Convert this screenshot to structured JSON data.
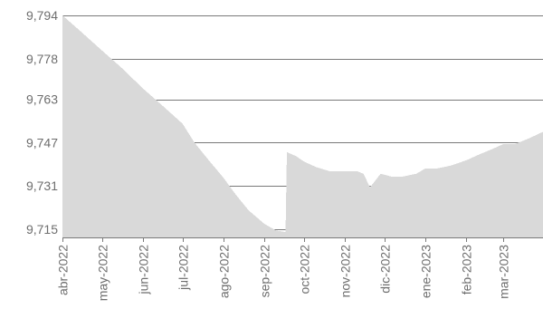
{
  "chart_data": {
    "type": "area",
    "title": "",
    "xlabel": "",
    "ylabel": "",
    "fill_color": "#d9d9d9",
    "grid": true,
    "ylim": [
      9.712,
      9.797
    ],
    "y_ticks": [
      9.715,
      9.731,
      9.747,
      9.763,
      9.778,
      9.794
    ],
    "y_tick_labels": [
      "9,715",
      "9,731",
      "9,747",
      "9,763",
      "9,778",
      "9,794"
    ],
    "x_ticks": [
      "2022-04-01",
      "2022-05-01",
      "2022-06-01",
      "2022-07-01",
      "2022-08-01",
      "2022-09-01",
      "2022-10-01",
      "2022-11-01",
      "2022-12-01",
      "2023-01-01",
      "2023-02-01",
      "2023-03-01"
    ],
    "x_tick_labels": [
      "abr-2022",
      "may-2022",
      "jun-2022",
      "jul-2022",
      "ago-2022",
      "sep-2022",
      "oct-2022",
      "nov-2022",
      "dic-2022",
      "ene-2023",
      "feb-2023",
      "mar-2023"
    ],
    "xlim": [
      "2022-04-01",
      "2023-03-31"
    ],
    "series": [
      {
        "x": [
          "2022-04-01",
          "2022-04-15",
          "2022-05-01",
          "2022-05-15",
          "2022-06-01",
          "2022-06-15",
          "2022-07-01",
          "2022-07-10",
          "2022-07-20",
          "2022-08-01",
          "2022-08-10",
          "2022-08-20",
          "2022-09-01",
          "2022-09-10",
          "2022-09-17",
          "2022-09-18",
          "2022-09-25",
          "2022-10-01",
          "2022-10-10",
          "2022-10-20",
          "2022-11-01",
          "2022-11-10",
          "2022-11-15",
          "2022-11-20",
          "2022-11-28",
          "2022-12-06",
          "2022-12-15",
          "2022-12-25",
          "2023-01-01",
          "2023-01-10",
          "2023-01-20",
          "2023-02-01",
          "2023-02-10",
          "2023-02-20",
          "2023-03-01",
          "2023-03-10",
          "2023-03-20",
          "2023-03-31"
        ],
        "y": [
          9.794,
          9.788,
          9.781,
          9.775,
          9.767,
          9.761,
          9.754,
          9.747,
          9.741,
          9.734,
          9.728,
          9.722,
          9.717,
          9.7145,
          9.714,
          9.7435,
          9.742,
          9.74,
          9.738,
          9.7365,
          9.7365,
          9.7365,
          9.7355,
          9.7305,
          9.7355,
          9.7345,
          9.7345,
          9.7355,
          9.7375,
          9.7375,
          9.7385,
          9.7405,
          9.7425,
          9.7445,
          9.7465,
          9.7465,
          9.7485,
          9.751
        ]
      }
    ]
  }
}
